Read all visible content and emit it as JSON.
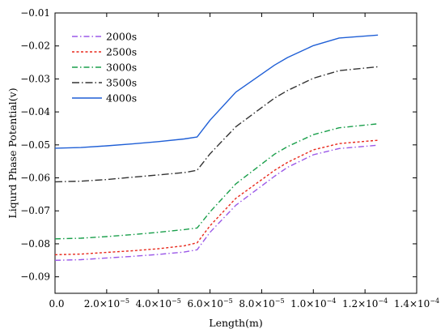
{
  "chart_data": {
    "type": "line",
    "title": "",
    "xlabel": "Length(m)",
    "ylabel": "Liqurd Phase Potential(v)",
    "xlim": [
      0,
      0.00014
    ],
    "ylim": [
      -0.095,
      -0.01
    ],
    "grid": false,
    "legend_position": "top-left",
    "x_ticks": [
      {
        "value": 0,
        "label": "0.0",
        "mantissa": "",
        "exp": ""
      },
      {
        "value": 2e-05,
        "label": "2.0×10−5",
        "mantissa": "2.0×10",
        "exp": "−5"
      },
      {
        "value": 4e-05,
        "label": "4.0×10−5",
        "mantissa": "4.0×10",
        "exp": "−5"
      },
      {
        "value": 6e-05,
        "label": "6.0×10−5",
        "mantissa": "6.0×10",
        "exp": "−5"
      },
      {
        "value": 8e-05,
        "label": "8.0×10−5",
        "mantissa": "8.0×10",
        "exp": "−5"
      },
      {
        "value": 0.0001,
        "label": "1.0×10−4",
        "mantissa": "1.0×10",
        "exp": "−4"
      },
      {
        "value": 0.00012,
        "label": "1.2×10−4",
        "mantissa": "1.2×10",
        "exp": "−4"
      },
      {
        "value": 0.00014,
        "label": "1.4×10−4",
        "mantissa": "1.4×10",
        "exp": "−4"
      }
    ],
    "y_ticks": [
      {
        "value": -0.01,
        "label": "−0.01"
      },
      {
        "value": -0.02,
        "label": "−0.02"
      },
      {
        "value": -0.03,
        "label": "−0.03"
      },
      {
        "value": -0.04,
        "label": "−0.04"
      },
      {
        "value": -0.05,
        "label": "−0.05"
      },
      {
        "value": -0.06,
        "label": "−0.06"
      },
      {
        "value": -0.07,
        "label": "−0.07"
      },
      {
        "value": -0.08,
        "label": "−0.08"
      },
      {
        "value": -0.09,
        "label": "−0.09"
      }
    ],
    "series": [
      {
        "name": "2000s",
        "color": "#9b59e8",
        "dash": "7,3,1.5,3",
        "x": [
          0,
          1e-05,
          2e-05,
          3e-05,
          4e-05,
          5e-05,
          5.5e-05,
          6e-05,
          7e-05,
          8.5e-05,
          9e-05,
          0.0001,
          0.00011,
          0.000125
        ],
        "y": [
          -0.085,
          -0.0848,
          -0.0843,
          -0.0838,
          -0.0832,
          -0.0825,
          -0.0818,
          -0.0765,
          -0.0683,
          -0.0595,
          -0.0568,
          -0.053,
          -0.0511,
          -0.0501
        ]
      },
      {
        "name": "2500s",
        "color": "#e8291c",
        "dash": "3,2.5",
        "x": [
          0,
          1e-05,
          2e-05,
          3e-05,
          4e-05,
          5e-05,
          5.5e-05,
          6e-05,
          7e-05,
          8.5e-05,
          9e-05,
          0.0001,
          0.00011,
          0.000125
        ],
        "y": [
          -0.0833,
          -0.0831,
          -0.0826,
          -0.0821,
          -0.0815,
          -0.0806,
          -0.0797,
          -0.0745,
          -0.0662,
          -0.0577,
          -0.0553,
          -0.0515,
          -0.0496,
          -0.0486
        ]
      },
      {
        "name": "3000s",
        "color": "#1a9f4b",
        "dash": "7,3,1.5,3",
        "x": [
          0,
          1e-05,
          2e-05,
          3e-05,
          4e-05,
          5e-05,
          5.5e-05,
          6e-05,
          7e-05,
          8.5e-05,
          9e-05,
          0.0001,
          0.00011,
          0.000125
        ],
        "y": [
          -0.0785,
          -0.0783,
          -0.0778,
          -0.0772,
          -0.0765,
          -0.0757,
          -0.0752,
          -0.0703,
          -0.0618,
          -0.0528,
          -0.0505,
          -0.0469,
          -0.0448,
          -0.0436
        ]
      },
      {
        "name": "3500s",
        "color": "#333333",
        "dash": "9,3,1.5,3",
        "x": [
          0,
          1e-05,
          2e-05,
          3e-05,
          4e-05,
          5e-05,
          5.5e-05,
          6e-05,
          7e-05,
          8.5e-05,
          9e-05,
          0.0001,
          0.00011,
          0.000125
        ],
        "y": [
          -0.0612,
          -0.061,
          -0.0605,
          -0.0598,
          -0.0591,
          -0.0584,
          -0.0577,
          -0.0527,
          -0.0445,
          -0.0358,
          -0.0335,
          -0.0298,
          -0.0275,
          -0.0263
        ]
      },
      {
        "name": "4000s",
        "color": "#1f5fd6",
        "dash": "",
        "x": [
          0,
          1e-05,
          2e-05,
          3e-05,
          4e-05,
          5e-05,
          5.5e-05,
          6e-05,
          7e-05,
          8.5e-05,
          9e-05,
          0.0001,
          0.00011,
          0.000125
        ],
        "y": [
          -0.051,
          -0.0508,
          -0.0503,
          -0.0497,
          -0.049,
          -0.0482,
          -0.0476,
          -0.0425,
          -0.034,
          -0.0258,
          -0.0235,
          -0.0199,
          -0.0176,
          -0.0167
        ]
      }
    ]
  }
}
